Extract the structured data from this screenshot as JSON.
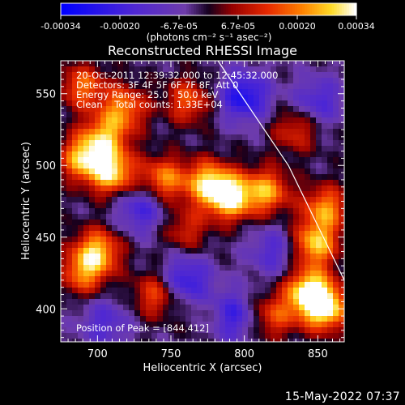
{
  "chart_data": {
    "type": "heatmap",
    "title": "Reconstructed RHESSI Image",
    "xlabel": "Heliocentric X (arcsec)",
    "ylabel": "Heliocentric Y (arcsec)",
    "xlim": [
      675,
      868
    ],
    "ylim": [
      377,
      573
    ],
    "xticks": [
      "700",
      "750",
      "800",
      "850"
    ],
    "yticks": [
      "400",
      "450",
      "500",
      "550"
    ],
    "colorbar": {
      "min": -0.00034,
      "max": 0.00034,
      "ticks": [
        "-0.00034",
        "-0.00020",
        "-6.7e-05",
        "6.7e-05",
        "0.00020",
        "0.00034"
      ],
      "units": "(photons cm⁻² s⁻¹ asec⁻²)"
    },
    "info_lines": [
      "20-Oct-2011 12:39:32.000 to 12:45:32.000",
      "Detectors: 3F 4F 5F 6F 7F 8F, Att 0",
      "Energy Range: 25.0 - 50.0 keV",
      "Clean    Total counts: 1.33E+04"
    ],
    "peak_label": "Position of Peak = [844,412]",
    "peak": [
      844,
      412
    ],
    "limb_line": [
      [
        782,
        573
      ],
      [
        830,
        500
      ],
      [
        868,
        420
      ]
    ],
    "sources": [
      {
        "x": 790,
        "y": 478,
        "amp": 1.0
      },
      {
        "x": 775,
        "y": 488,
        "amp": 0.8
      },
      {
        "x": 815,
        "y": 482,
        "amp": 0.75
      },
      {
        "x": 745,
        "y": 490,
        "amp": 0.7
      },
      {
        "x": 710,
        "y": 495,
        "amp": 0.9
      },
      {
        "x": 690,
        "y": 505,
        "amp": 0.8
      },
      {
        "x": 705,
        "y": 520,
        "amp": 0.7
      },
      {
        "x": 718,
        "y": 540,
        "amp": 0.65
      },
      {
        "x": 690,
        "y": 555,
        "amp": 0.6
      },
      {
        "x": 762,
        "y": 545,
        "amp": 0.55
      },
      {
        "x": 855,
        "y": 470,
        "amp": 0.7
      },
      {
        "x": 848,
        "y": 445,
        "amp": 0.85
      },
      {
        "x": 844,
        "y": 412,
        "amp": 1.0
      },
      {
        "x": 855,
        "y": 400,
        "amp": 0.95
      },
      {
        "x": 700,
        "y": 440,
        "amp": 0.8
      },
      {
        "x": 690,
        "y": 425,
        "amp": 0.6
      },
      {
        "x": 740,
        "y": 410,
        "amp": 0.55
      },
      {
        "x": 780,
        "y": 395,
        "amp": 0.45
      },
      {
        "x": 820,
        "y": 395,
        "amp": 0.5
      },
      {
        "x": 835,
        "y": 525,
        "amp": 0.45
      },
      {
        "x": 760,
        "y": 455,
        "amp": 0.4
      }
    ],
    "negatives": [
      {
        "x": 800,
        "y": 548,
        "amp": 0.7
      },
      {
        "x": 730,
        "y": 470,
        "amp": 0.5
      },
      {
        "x": 788,
        "y": 395,
        "amp": 0.8
      },
      {
        "x": 760,
        "y": 420,
        "amp": 0.6
      },
      {
        "x": 850,
        "y": 545,
        "amp": 0.45
      },
      {
        "x": 705,
        "y": 390,
        "amp": 0.4
      },
      {
        "x": 820,
        "y": 440,
        "amp": 0.4
      }
    ]
  },
  "footer": {
    "timestamp": "15-May-2022 07:37"
  }
}
